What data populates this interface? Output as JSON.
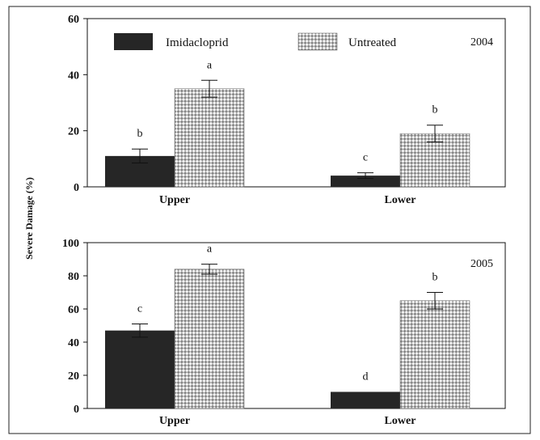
{
  "colors": {
    "imidacloprid": "#262626",
    "untreated_light": "#f4f4f4",
    "untreated_dark": "#8a8a8a",
    "axis": "#111111"
  },
  "chart_data": {
    "type": "bar",
    "ylabel": "Severe Damage (%)",
    "legend": {
      "position": "top",
      "entries": [
        "Imidacloprid",
        "Untreated"
      ]
    },
    "panels": [
      {
        "year_label": "2004",
        "categories": [
          "Upper",
          "Lower"
        ],
        "ylim": [
          0,
          60
        ],
        "yticks": [
          0,
          20,
          40,
          60
        ],
        "series": [
          {
            "name": "Imidacloprid",
            "values": [
              11,
              4
            ],
            "errors": [
              2.5,
              1
            ],
            "letters": [
              "b",
              "c"
            ]
          },
          {
            "name": "Untreated",
            "values": [
              35,
              19
            ],
            "errors": [
              3,
              3
            ],
            "letters": [
              "a",
              "b"
            ]
          }
        ]
      },
      {
        "year_label": "2005",
        "categories": [
          "Upper",
          "Lower"
        ],
        "ylim": [
          0,
          100
        ],
        "yticks": [
          0,
          20,
          40,
          60,
          80,
          100
        ],
        "series": [
          {
            "name": "Imidacloprid",
            "values": [
              47,
              10
            ],
            "errors": [
              4,
              0
            ],
            "letters": [
              "c",
              "d"
            ]
          },
          {
            "name": "Untreated",
            "values": [
              84,
              65
            ],
            "errors": [
              3,
              5
            ],
            "letters": [
              "a",
              "b"
            ]
          }
        ]
      }
    ]
  }
}
